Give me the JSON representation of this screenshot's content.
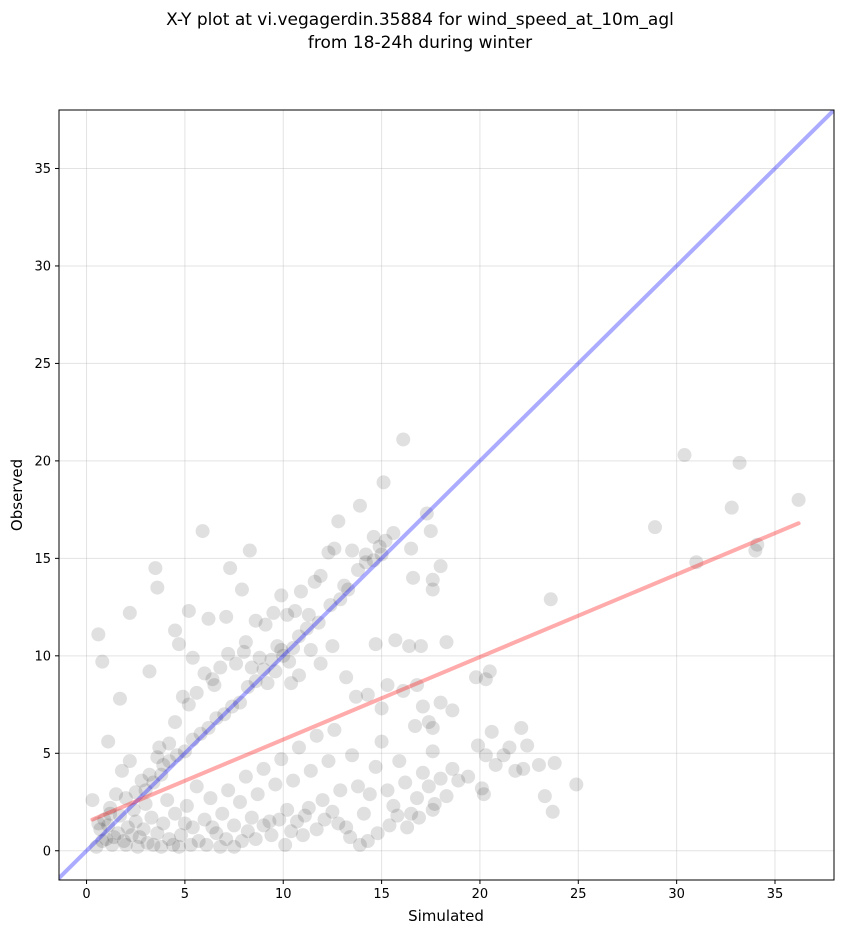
{
  "chart_data": {
    "type": "scatter",
    "title_line1": "X-Y plot at vi.vegagerdin.35884 for wind_speed_at_10m_agl",
    "title_line2": "from 18-24h during winter",
    "xlabel": "Simulated",
    "ylabel": "Observed",
    "xlim": [
      -1.4,
      38
    ],
    "ylim": [
      -1.5,
      38
    ],
    "xticks": [
      0,
      5,
      10,
      15,
      20,
      25,
      30,
      35
    ],
    "yticks": [
      0,
      5,
      10,
      15,
      20,
      25,
      30,
      35
    ],
    "grid": true,
    "point_color": "#000000",
    "identity_line": {
      "x": [
        -1.4,
        38
      ],
      "y": [
        -1.4,
        38
      ],
      "color": "#0000ff"
    },
    "fit_line": {
      "x": [
        0.3,
        36.2
      ],
      "y": [
        1.6,
        16.8
      ],
      "color": "#ff0000"
    },
    "points": [
      [
        0.3,
        2.6
      ],
      [
        0.6,
        11.1
      ],
      [
        0.8,
        9.7
      ],
      [
        1.1,
        5.6
      ],
      [
        1.7,
        7.8
      ],
      [
        2.2,
        12.2
      ],
      [
        3.5,
        14.5
      ],
      [
        3.6,
        13.5
      ],
      [
        3.2,
        9.2
      ],
      [
        3.7,
        5.3
      ],
      [
        4.5,
        11.3
      ],
      [
        4.7,
        10.6
      ],
      [
        5.2,
        12.3
      ],
      [
        5.9,
        16.4
      ],
      [
        5.4,
        9.9
      ],
      [
        6.2,
        11.9
      ],
      [
        6.5,
        8.5
      ],
      [
        7.1,
        12.0
      ],
      [
        7.3,
        14.5
      ],
      [
        7.9,
        13.4
      ],
      [
        8.3,
        15.4
      ],
      [
        8.1,
        10.7
      ],
      [
        8.6,
        11.8
      ],
      [
        9.1,
        11.6
      ],
      [
        9.5,
        12.2
      ],
      [
        9.9,
        13.1
      ],
      [
        10.2,
        12.1
      ],
      [
        10.6,
        12.3
      ],
      [
        10.9,
        13.3
      ],
      [
        11.3,
        12.1
      ],
      [
        11.6,
        13.8
      ],
      [
        11.9,
        14.1
      ],
      [
        12.3,
        15.3
      ],
      [
        12.6,
        15.5
      ],
      [
        12.8,
        16.9
      ],
      [
        13.1,
        13.6
      ],
      [
        13.5,
        15.4
      ],
      [
        13.9,
        17.7
      ],
      [
        14.2,
        15.2
      ],
      [
        14.6,
        16.1
      ],
      [
        14.9,
        15.6
      ],
      [
        15.2,
        15.9
      ],
      [
        15.6,
        16.3
      ],
      [
        16.1,
        21.1
      ],
      [
        15.1,
        18.9
      ],
      [
        16.5,
        15.5
      ],
      [
        17.3,
        17.3
      ],
      [
        17.5,
        16.4
      ],
      [
        16.6,
        14.0
      ],
      [
        17.6,
        13.9
      ],
      [
        18.0,
        14.6
      ],
      [
        17.6,
        13.4
      ],
      [
        15.7,
        10.8
      ],
      [
        16.4,
        10.5
      ],
      [
        17.0,
        10.5
      ],
      [
        18.3,
        10.7
      ],
      [
        14.7,
        10.6
      ],
      [
        15.3,
        8.5
      ],
      [
        16.1,
        8.2
      ],
      [
        16.8,
        8.5
      ],
      [
        17.1,
        7.4
      ],
      [
        18.0,
        7.6
      ],
      [
        18.6,
        7.2
      ],
      [
        17.4,
        6.6
      ],
      [
        16.7,
        6.4
      ],
      [
        17.6,
        6.3
      ],
      [
        17.6,
        5.1
      ],
      [
        15.0,
        7.3
      ],
      [
        14.3,
        8.0
      ],
      [
        13.7,
        7.9
      ],
      [
        13.2,
        8.9
      ],
      [
        12.5,
        10.5
      ],
      [
        11.9,
        9.6
      ],
      [
        11.4,
        10.3
      ],
      [
        10.8,
        9.0
      ],
      [
        10.4,
        8.6
      ],
      [
        9.9,
        10.3
      ],
      [
        9.6,
        9.2
      ],
      [
        9.2,
        8.6
      ],
      [
        8.8,
        9.9
      ],
      [
        8.4,
        9.4
      ],
      [
        8.0,
        10.2
      ],
      [
        7.6,
        9.6
      ],
      [
        7.2,
        10.1
      ],
      [
        6.8,
        9.4
      ],
      [
        6.4,
        8.8
      ],
      [
        6.0,
        9.1
      ],
      [
        5.6,
        8.1
      ],
      [
        5.2,
        7.5
      ],
      [
        4.9,
        7.9
      ],
      [
        4.5,
        6.6
      ],
      [
        4.2,
        5.5
      ],
      [
        3.9,
        4.4
      ],
      [
        3.6,
        4.8
      ],
      [
        3.2,
        3.9
      ],
      [
        2.8,
        3.6
      ],
      [
        2.5,
        3.0
      ],
      [
        2.2,
        4.6
      ],
      [
        1.8,
        4.1
      ],
      [
        1.5,
        2.9
      ],
      [
        1.2,
        2.2
      ],
      [
        0.9,
        1.6
      ],
      [
        0.7,
        1.1
      ],
      [
        1.0,
        0.6
      ],
      [
        1.3,
        0.3
      ],
      [
        1.6,
        0.9
      ],
      [
        1.9,
        0.5
      ],
      [
        2.1,
        1.2
      ],
      [
        2.3,
        0.8
      ],
      [
        2.5,
        1.5
      ],
      [
        2.7,
        0.7
      ],
      [
        2.9,
        1.1
      ],
      [
        3.1,
        0.4
      ],
      [
        3.3,
        1.7
      ],
      [
        3.6,
        0.9
      ],
      [
        3.9,
        1.4
      ],
      [
        4.2,
        0.6
      ],
      [
        4.5,
        1.9
      ],
      [
        4.8,
        0.8
      ],
      [
        5.1,
        2.3
      ],
      [
        5.4,
        1.2
      ],
      [
        5.7,
        0.5
      ],
      [
        6.0,
        1.6
      ],
      [
        6.3,
        2.7
      ],
      [
        6.6,
        0.9
      ],
      [
        6.9,
        1.9
      ],
      [
        7.2,
        3.1
      ],
      [
        7.5,
        1.3
      ],
      [
        7.8,
        2.5
      ],
      [
        8.1,
        3.8
      ],
      [
        8.4,
        1.7
      ],
      [
        8.7,
        2.9
      ],
      [
        9.0,
        4.2
      ],
      [
        9.3,
        1.5
      ],
      [
        9.6,
        3.4
      ],
      [
        9.9,
        4.7
      ],
      [
        10.2,
        2.1
      ],
      [
        10.5,
        3.6
      ],
      [
        10.8,
        5.3
      ],
      [
        11.1,
        1.8
      ],
      [
        11.4,
        4.1
      ],
      [
        11.7,
        5.9
      ],
      [
        12.0,
        2.6
      ],
      [
        12.3,
        4.6
      ],
      [
        12.6,
        6.2
      ],
      [
        12.9,
        3.1
      ],
      [
        13.2,
        1.2
      ],
      [
        13.5,
        4.9
      ],
      [
        13.8,
        3.3
      ],
      [
        14.1,
        1.9
      ],
      [
        14.4,
        2.9
      ],
      [
        14.7,
        4.3
      ],
      [
        15.0,
        5.6
      ],
      [
        15.3,
        3.1
      ],
      [
        15.6,
        2.3
      ],
      [
        15.9,
        4.6
      ],
      [
        16.2,
        3.5
      ],
      [
        16.5,
        1.9
      ],
      [
        16.8,
        2.7
      ],
      [
        17.1,
        4.0
      ],
      [
        17.4,
        3.3
      ],
      [
        17.7,
        2.4
      ],
      [
        18.0,
        3.7
      ],
      [
        18.3,
        2.8
      ],
      [
        18.6,
        4.2
      ],
      [
        18.9,
        3.6
      ],
      [
        19.4,
        3.8
      ],
      [
        19.9,
        5.4
      ],
      [
        20.3,
        4.9
      ],
      [
        20.6,
        6.1
      ],
      [
        20.8,
        4.4
      ],
      [
        21.2,
        4.9
      ],
      [
        21.5,
        5.3
      ],
      [
        21.8,
        4.1
      ],
      [
        22.1,
        6.3
      ],
      [
        22.4,
        5.4
      ],
      [
        22.2,
        4.2
      ],
      [
        23.0,
        4.4
      ],
      [
        23.3,
        2.8
      ],
      [
        23.7,
        2.0
      ],
      [
        23.8,
        4.5
      ],
      [
        24.9,
        3.4
      ],
      [
        23.6,
        12.9
      ],
      [
        20.3,
        8.8
      ],
      [
        20.5,
        9.2
      ],
      [
        19.8,
        8.9
      ],
      [
        20.1,
        3.2
      ],
      [
        20.2,
        2.9
      ],
      [
        28.9,
        16.6
      ],
      [
        30.4,
        20.3
      ],
      [
        31.0,
        14.8
      ],
      [
        32.8,
        17.6
      ],
      [
        33.2,
        19.9
      ],
      [
        34.0,
        15.4
      ],
      [
        34.1,
        15.7
      ],
      [
        36.2,
        18.0
      ],
      [
        0.5,
        0.2
      ],
      [
        0.8,
        0.5
      ],
      [
        1.1,
        1.3
      ],
      [
        1.4,
        0.7
      ],
      [
        1.7,
        1.8
      ],
      [
        2.0,
        0.3
      ],
      [
        2.4,
        2.1
      ],
      [
        2.6,
        0.2
      ],
      [
        3.0,
        2.4
      ],
      [
        3.4,
        0.3
      ],
      [
        3.8,
        0.2
      ],
      [
        4.1,
        2.6
      ],
      [
        4.4,
        0.3
      ],
      [
        4.7,
        0.2
      ],
      [
        5.0,
        1.4
      ],
      [
        5.3,
        0.3
      ],
      [
        5.6,
        3.3
      ],
      [
        6.1,
        0.3
      ],
      [
        6.4,
        1.2
      ],
      [
        6.8,
        0.2
      ],
      [
        7.1,
        0.6
      ],
      [
        7.5,
        0.2
      ],
      [
        7.9,
        0.5
      ],
      [
        8.2,
        1.0
      ],
      [
        8.6,
        0.6
      ],
      [
        9.0,
        1.3
      ],
      [
        9.4,
        0.8
      ],
      [
        9.8,
        1.6
      ],
      [
        10.1,
        0.3
      ],
      [
        10.4,
        1.0
      ],
      [
        10.7,
        1.5
      ],
      [
        11.0,
        0.8
      ],
      [
        11.3,
        2.2
      ],
      [
        11.7,
        1.1
      ],
      [
        12.1,
        1.6
      ],
      [
        12.5,
        2.0
      ],
      [
        12.8,
        1.4
      ],
      [
        13.4,
        0.7
      ],
      [
        13.9,
        0.3
      ],
      [
        14.3,
        0.5
      ],
      [
        14.8,
        0.9
      ],
      [
        15.4,
        1.3
      ],
      [
        15.8,
        1.8
      ],
      [
        16.3,
        1.2
      ],
      [
        16.9,
        1.7
      ],
      [
        17.6,
        2.1
      ],
      [
        3.0,
        3.1
      ],
      [
        2.0,
        2.7
      ],
      [
        1.2,
        1.9
      ],
      [
        0.6,
        1.4
      ],
      [
        10.0,
        10.0
      ],
      [
        10.3,
        9.7
      ],
      [
        9.7,
        10.5
      ],
      [
        10.5,
        10.4
      ],
      [
        9.4,
        9.8
      ],
      [
        10.8,
        11.0
      ],
      [
        11.2,
        11.4
      ],
      [
        11.8,
        11.7
      ],
      [
        12.4,
        12.6
      ],
      [
        12.9,
        12.9
      ],
      [
        13.3,
        13.4
      ],
      [
        13.8,
        14.4
      ],
      [
        14.2,
        14.8
      ],
      [
        14.6,
        14.9
      ],
      [
        15.0,
        15.2
      ],
      [
        9.0,
        9.3
      ],
      [
        8.6,
        8.7
      ],
      [
        8.2,
        8.4
      ],
      [
        7.8,
        7.6
      ],
      [
        7.4,
        7.4
      ],
      [
        7.0,
        7.0
      ],
      [
        6.6,
        6.8
      ],
      [
        6.2,
        6.3
      ],
      [
        5.8,
        6.0
      ],
      [
        5.4,
        5.7
      ],
      [
        5.0,
        5.1
      ],
      [
        4.6,
        4.9
      ],
      [
        4.2,
        4.6
      ],
      [
        3.8,
        3.9
      ],
      [
        3.4,
        3.5
      ]
    ]
  }
}
